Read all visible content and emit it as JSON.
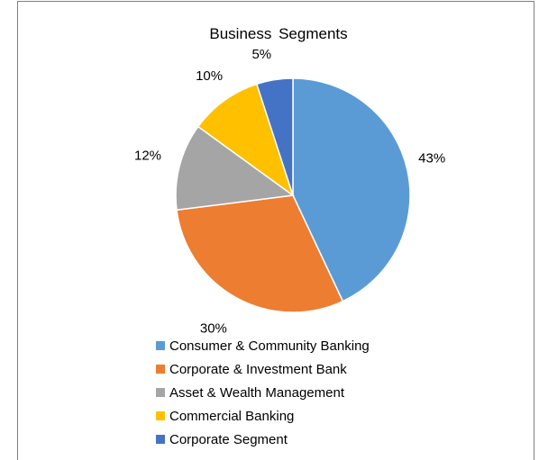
{
  "chart_data": {
    "type": "pie",
    "title": "Business Segments",
    "slices": [
      {
        "name": "Consumer & Community Banking",
        "value": 43,
        "label": "43%",
        "color": "#5b9bd5"
      },
      {
        "name": "Corporate & Investment Bank",
        "value": 30,
        "label": "30%",
        "color": "#ed7d31"
      },
      {
        "name": "Asset & Wealth Management",
        "value": 12,
        "label": "12%",
        "color": "#a5a5a5"
      },
      {
        "name": "Commercial Banking",
        "value": 10,
        "label": "10%",
        "color": "#ffc000"
      },
      {
        "name": "Corporate Segment",
        "value": 5,
        "label": "5%",
        "color": "#4472c4"
      }
    ],
    "legend_position": "bottom"
  }
}
